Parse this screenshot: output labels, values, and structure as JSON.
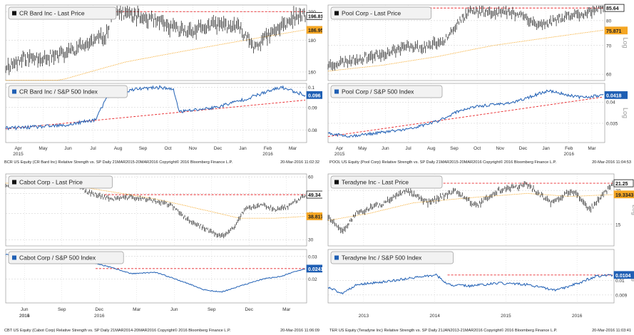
{
  "colors": {
    "price_line": "#111111",
    "ma_line": "#f5a623",
    "rs_line": "#1f5fb4",
    "trend_line": "#e8262a",
    "panel_bg": "#ffffff",
    "grid": "#c9c9c9",
    "legend_price_marker": "#111111",
    "legend_rs_marker": "#1f5fb4",
    "last_price_tag": "#ffffff",
    "ma_tag": "#f5a623",
    "rs_tag": "#1f5fb4"
  },
  "quadrants": [
    {
      "footer": "BCR US Equity (CR Bard Inc) Relative Strength vs. SP  Daily 21MAR2015-20MAR2016  Copyright© 2016 Bloomberg Finance L.P.",
      "timestamp": "20-Mar-2016 11:02:32"
    },
    {
      "footer": "POOL US Equity (Pool Corp) Relative Strength vs. SP  Daily 21MAR2015-20MAR2016  Copyright© 2016 Bloomberg Finance L.P.",
      "timestamp": "20-Mar-2016 11:04:53"
    },
    {
      "footer": "CBT US Equity (Cabot Corp) Relative Strength vs. SP  Daily 21MAR2014-20MAR2016  Copyright© 2016 Bloomberg Finance L.P.",
      "timestamp": "20-Mar-2016 11:06:09"
    },
    {
      "footer": "TER US Equity (Teradyne Inc) Relative Strength vs. SP  Daily 21JAN2013-21MAR2016  Copyright© 2016 Bloomberg Finance L.P.",
      "timestamp": "20-Mar-2016 11:03:41"
    }
  ],
  "chart_data": [
    {
      "type": "line",
      "ticker": "BCR",
      "axis_scale": "log",
      "x_labels": [
        "Apr",
        "May",
        "Jun",
        "Jul",
        "Aug",
        "Sep",
        "Oct",
        "Nov",
        "Dec",
        "Jan",
        "Feb",
        "Mar"
      ],
      "x_year_labels": [
        {
          "label": "2015",
          "at": "Apr"
        },
        {
          "label": "2016",
          "at": "Feb"
        }
      ],
      "top": {
        "legend": "CR Bard Inc - Last Price",
        "ylim": [
          155,
          205
        ],
        "yticks": [
          160,
          180,
          200
        ],
        "axis_label": "Log",
        "last_value": "196.81",
        "ma_value": "186.958",
        "resistance": 200,
        "price_anchors": [
          [
            0,
            163
          ],
          [
            0.06,
            168
          ],
          [
            0.18,
            170
          ],
          [
            0.28,
            178
          ],
          [
            0.335,
            183
          ],
          [
            0.355,
            200
          ],
          [
            0.4,
            199
          ],
          [
            0.43,
            197
          ],
          [
            0.5,
            193
          ],
          [
            0.56,
            188
          ],
          [
            0.6,
            186
          ],
          [
            0.64,
            188
          ],
          [
            0.72,
            191
          ],
          [
            0.78,
            188
          ],
          [
            0.83,
            176
          ],
          [
            0.9,
            186
          ],
          [
            0.96,
            196
          ],
          [
            1,
            197
          ]
        ],
        "ma_anchors": [
          [
            0,
            150
          ],
          [
            0.2,
            156
          ],
          [
            0.4,
            166
          ],
          [
            0.6,
            173
          ],
          [
            0.8,
            180
          ],
          [
            1,
            187
          ]
        ]
      },
      "bottom": {
        "legend": "CR Bard Inc / S&P 500 Index",
        "ylim": [
          0.075,
          0.102
        ],
        "yticks": [
          0.08,
          0.09,
          0.1
        ],
        "axis_label": "Log",
        "last_value": "0.096",
        "trend": [
          [
            0,
            0.0805
          ],
          [
            1,
            0.0935
          ]
        ],
        "rs_anchors": [
          [
            0,
            0.0808
          ],
          [
            0.08,
            0.0812
          ],
          [
            0.2,
            0.082
          ],
          [
            0.3,
            0.0845
          ],
          [
            0.34,
            0.095
          ],
          [
            0.36,
            0.097
          ],
          [
            0.44,
            0.099
          ],
          [
            0.52,
            0.1
          ],
          [
            0.56,
            0.0985
          ],
          [
            0.58,
            0.088
          ],
          [
            0.7,
            0.09
          ],
          [
            0.8,
            0.094
          ],
          [
            0.86,
            0.097
          ],
          [
            0.92,
            0.1
          ],
          [
            0.96,
            0.098
          ],
          [
            1,
            0.096
          ]
        ]
      }
    },
    {
      "type": "line",
      "ticker": "POOL",
      "axis_scale": "log",
      "x_labels": [
        "Apr",
        "May",
        "Jun",
        "Jul",
        "Aug",
        "Sep",
        "Oct",
        "Nov",
        "Dec",
        "Jan",
        "Feb",
        "Mar"
      ],
      "x_year_labels": [
        {
          "label": "2015",
          "at": "Apr"
        },
        {
          "label": "2016",
          "at": "Feb"
        }
      ],
      "top": {
        "legend": "Pool Corp - Last Price",
        "ylim": [
          58,
          87
        ],
        "yticks": [
          60,
          70,
          80
        ],
        "axis_label": "Log",
        "last_value": "85.64",
        "ma_value": "75.871",
        "resistance": 85.6,
        "price_anchors": [
          [
            0,
            63
          ],
          [
            0.1,
            65
          ],
          [
            0.2,
            67
          ],
          [
            0.3,
            70
          ],
          [
            0.34,
            69
          ],
          [
            0.42,
            72
          ],
          [
            0.48,
            80
          ],
          [
            0.52,
            84
          ],
          [
            0.6,
            84
          ],
          [
            0.7,
            83
          ],
          [
            0.76,
            78
          ],
          [
            0.8,
            79
          ],
          [
            0.86,
            82
          ],
          [
            0.92,
            83
          ],
          [
            1,
            85.6
          ]
        ],
        "ma_anchors": [
          [
            0,
            61
          ],
          [
            0.2,
            63
          ],
          [
            0.4,
            66
          ],
          [
            0.6,
            70
          ],
          [
            0.8,
            73
          ],
          [
            1,
            76
          ]
        ]
      },
      "bottom": {
        "legend": "Pool Corp / S&P 500 Index",
        "ylim": [
          0.031,
          0.045
        ],
        "yticks": [
          0.035,
          0.04
        ],
        "axis_label": "Log",
        "last_value": "0.0418",
        "trend": [
          [
            0,
            0.0322
          ],
          [
            1,
            0.0413
          ]
        ],
        "rs_anchors": [
          [
            0,
            0.0328
          ],
          [
            0.08,
            0.0323
          ],
          [
            0.16,
            0.0328
          ],
          [
            0.3,
            0.0338
          ],
          [
            0.4,
            0.0355
          ],
          [
            0.48,
            0.038
          ],
          [
            0.55,
            0.039
          ],
          [
            0.62,
            0.0395
          ],
          [
            0.68,
            0.04
          ],
          [
            0.74,
            0.0415
          ],
          [
            0.8,
            0.043
          ],
          [
            0.86,
            0.042
          ],
          [
            0.92,
            0.0412
          ],
          [
            1,
            0.0418
          ]
        ]
      }
    },
    {
      "type": "line",
      "ticker": "CBT",
      "axis_scale": "log",
      "x_labels": [
        "Jun",
        "Sep",
        "Dec",
        "Mar",
        "Jun",
        "Sep",
        "Dec",
        "Mar"
      ],
      "x_year_labels": [
        {
          "label": "2014",
          "at": "Jun"
        },
        {
          "label": "2015",
          "at": "Jun"
        },
        {
          "label": "2016",
          "at": "Dec"
        }
      ],
      "top": {
        "legend": "Cabot Corp - Last Price",
        "ylim": [
          28,
          62
        ],
        "yticks": [
          30,
          40,
          50,
          60
        ],
        "axis_label": "Log",
        "last_value": "49.34",
        "ma_value": "38.817",
        "resistance": 49.3,
        "price_anchors": [
          [
            0,
            55
          ],
          [
            0.1,
            57
          ],
          [
            0.22,
            58
          ],
          [
            0.27,
            51
          ],
          [
            0.35,
            47
          ],
          [
            0.42,
            48
          ],
          [
            0.5,
            46
          ],
          [
            0.55,
            44
          ],
          [
            0.6,
            38
          ],
          [
            0.68,
            33
          ],
          [
            0.72,
            31
          ],
          [
            0.76,
            34
          ],
          [
            0.8,
            42
          ],
          [
            0.86,
            44
          ],
          [
            0.9,
            42
          ],
          [
            0.94,
            43
          ],
          [
            1,
            49.3
          ]
        ],
        "ma_anchors": [
          [
            0,
            56
          ],
          [
            0.2,
            55
          ],
          [
            0.35,
            51
          ],
          [
            0.5,
            47
          ],
          [
            0.65,
            42
          ],
          [
            0.78,
            38
          ],
          [
            0.9,
            38
          ],
          [
            1,
            38.8
          ]
        ]
      },
      "bottom": {
        "legend": "Cabot Corp / S&P 500 Index",
        "ylim": [
          0.013,
          0.034
        ],
        "yticks": [
          0.02,
          0.03
        ],
        "axis_label": "Log",
        "last_value": "0.0241",
        "trend": [
          [
            0.3,
            0.0241
          ],
          [
            1,
            0.0241
          ]
        ],
        "rs_anchors": [
          [
            0,
            0.031
          ],
          [
            0.1,
            0.032
          ],
          [
            0.22,
            0.03
          ],
          [
            0.3,
            0.0265
          ],
          [
            0.42,
            0.022
          ],
          [
            0.5,
            0.0225
          ],
          [
            0.58,
            0.0195
          ],
          [
            0.66,
            0.0165
          ],
          [
            0.72,
            0.0158
          ],
          [
            0.78,
            0.0175
          ],
          [
            0.86,
            0.02
          ],
          [
            0.92,
            0.021
          ],
          [
            1,
            0.0241
          ]
        ]
      }
    },
    {
      "type": "line",
      "ticker": "TER",
      "axis_scale": "log",
      "x_labels": [
        "2013",
        "2014",
        "2015",
        "2016"
      ],
      "x_year_labels": [],
      "top": {
        "legend": "Teradyne Inc - Last Price",
        "ylim": [
          12.5,
          23
        ],
        "yticks": [
          15,
          20
        ],
        "axis_label": "Log",
        "last_value": "21.25",
        "ma_value": "19.3343",
        "resistance": 21.25,
        "price_anchors": [
          [
            0,
            16
          ],
          [
            0.05,
            14
          ],
          [
            0.1,
            16.5
          ],
          [
            0.2,
            18
          ],
          [
            0.28,
            20
          ],
          [
            0.35,
            18
          ],
          [
            0.45,
            20
          ],
          [
            0.52,
            17.5
          ],
          [
            0.6,
            20
          ],
          [
            0.7,
            21
          ],
          [
            0.78,
            18
          ],
          [
            0.86,
            20
          ],
          [
            0.92,
            17
          ],
          [
            1,
            21
          ]
        ],
        "ma_anchors": [
          [
            0,
            15.5
          ],
          [
            0.15,
            16.5
          ],
          [
            0.3,
            18
          ],
          [
            0.5,
            18.8
          ],
          [
            0.7,
            19.5
          ],
          [
            0.85,
            19
          ],
          [
            1,
            19.3
          ]
        ]
      },
      "bottom": {
        "legend": "Teradyne Inc / S&P 500 Index",
        "ylim": [
          0.0085,
          0.0125
        ],
        "yticks": [
          0.009,
          0.01
        ],
        "axis_label": "Log",
        "last_value": "0.0104",
        "trend": [
          [
            0.42,
            0.0104
          ],
          [
            1,
            0.0104
          ]
        ],
        "rs_anchors": [
          [
            0,
            0.0095
          ],
          [
            0.05,
            0.0091
          ],
          [
            0.1,
            0.0097
          ],
          [
            0.2,
            0.0099
          ],
          [
            0.3,
            0.0102
          ],
          [
            0.38,
            0.0104
          ],
          [
            0.42,
            0.0097
          ],
          [
            0.5,
            0.0096
          ],
          [
            0.6,
            0.0098
          ],
          [
            0.7,
            0.0097
          ],
          [
            0.8,
            0.0093
          ],
          [
            0.88,
            0.0098
          ],
          [
            0.94,
            0.0103
          ],
          [
            1,
            0.0104
          ]
        ]
      }
    }
  ]
}
